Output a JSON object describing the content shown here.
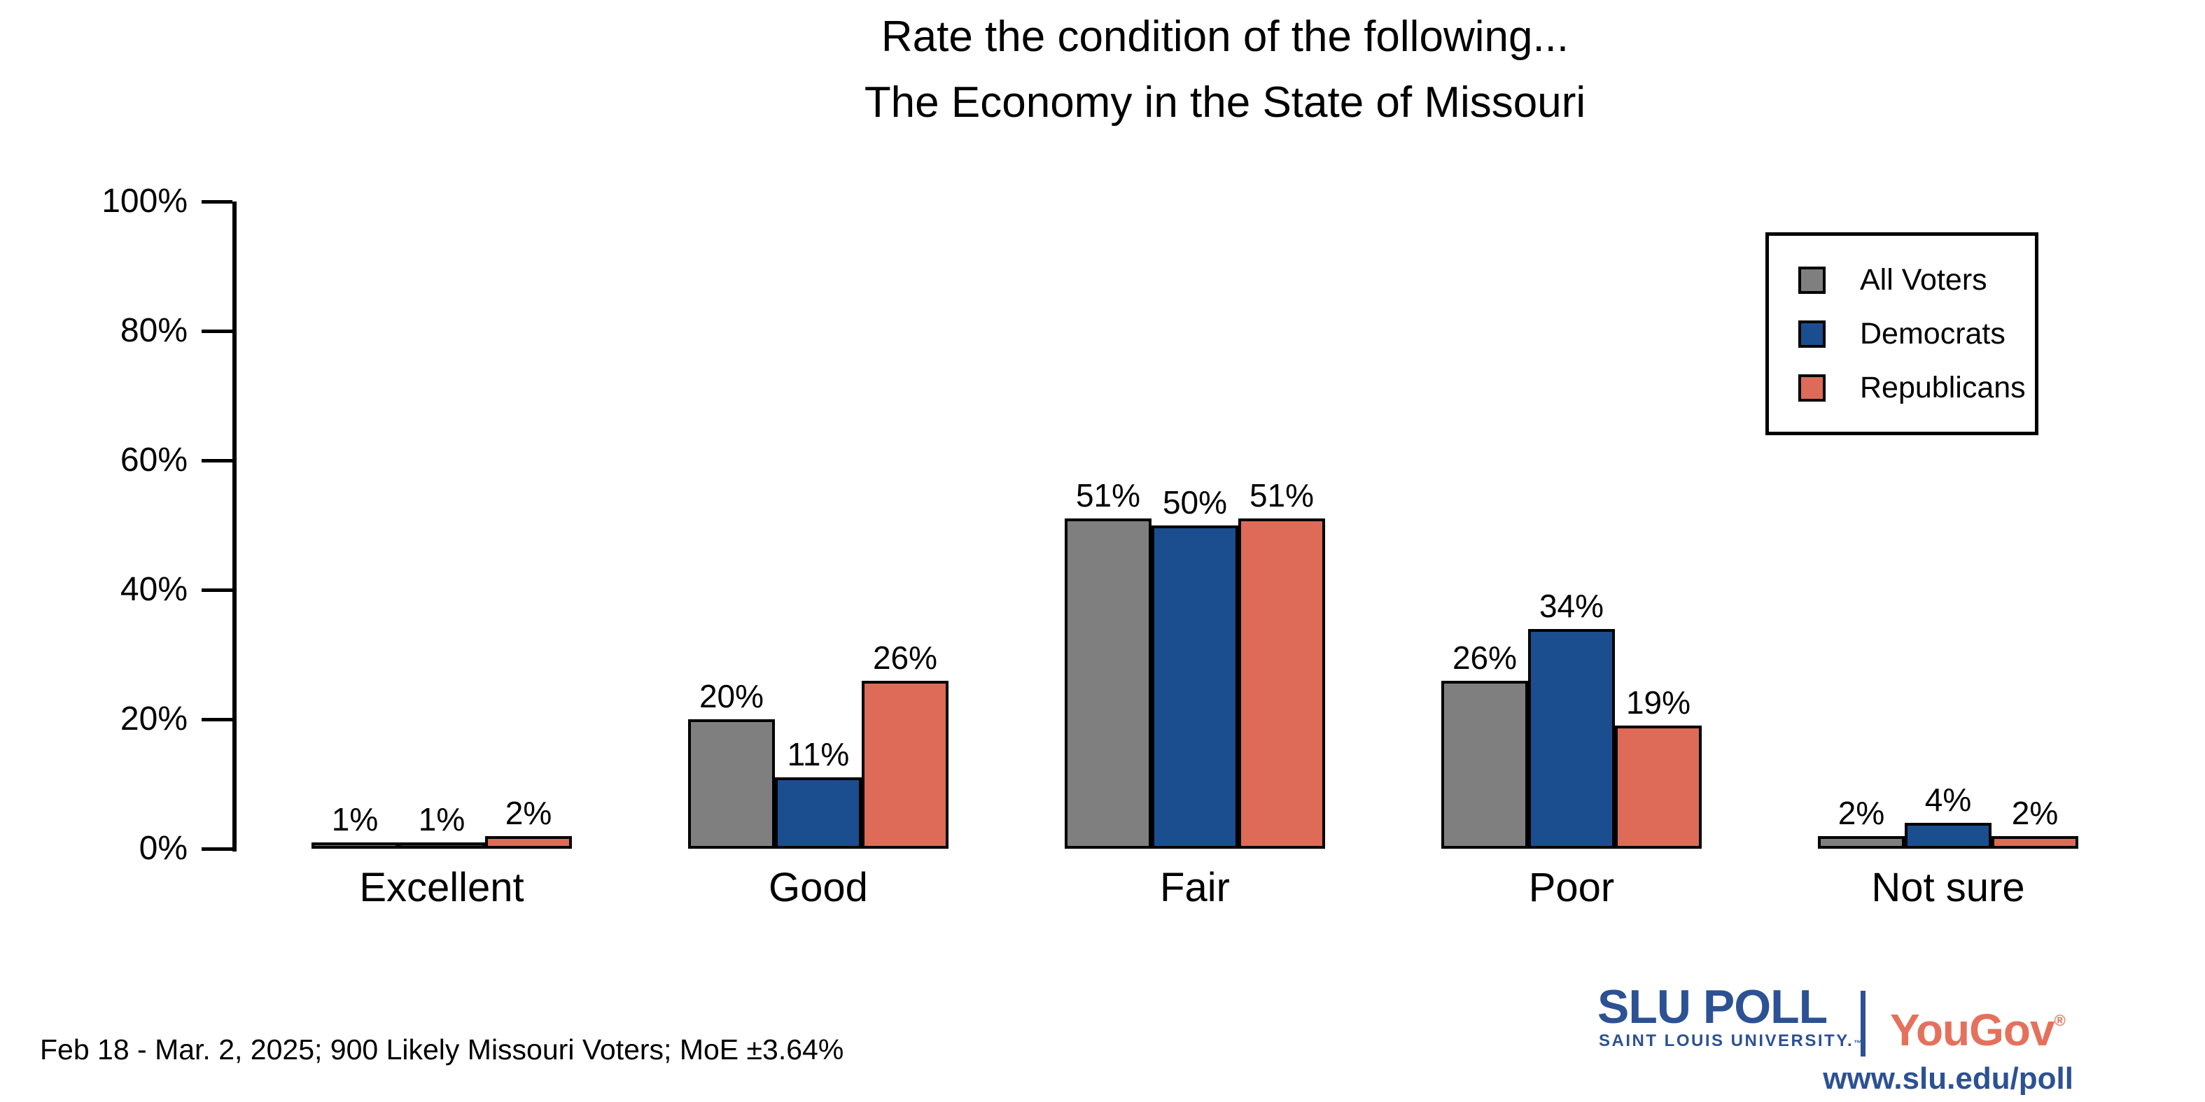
{
  "title": {
    "line1": "Rate the condition of the following...",
    "line2": "The Economy in the State of Missouri"
  },
  "footer": {
    "source_note": "Feb 18 - Mar. 2, 2025; 900 Likely Missouri Voters; MoE ±3.64%"
  },
  "branding": {
    "slu_poll": "SLU POLL",
    "slu_subtitle": "SAINT LOUIS UNIVERSITY.",
    "slu_trademark": "™",
    "yougov": "YouGov",
    "yougov_registered": "®",
    "url": "www.slu.edu/poll",
    "slu_blue": "#2C5194",
    "yougov_coral": "#E5715C"
  },
  "chart_data": {
    "type": "bar",
    "title": "Rate the condition of the following... The Economy in the State of Missouri",
    "categories": [
      "Excellent",
      "Good",
      "Fair",
      "Poor",
      "Not sure"
    ],
    "series": [
      {
        "name": "All Voters",
        "color": "#7F7F7F",
        "values": [
          1,
          20,
          51,
          26,
          2
        ]
      },
      {
        "name": "Democrats",
        "color": "#1B4E8E",
        "values": [
          1,
          11,
          50,
          34,
          4
        ]
      },
      {
        "name": "Republicans",
        "color": "#DD6B58",
        "values": [
          2,
          26,
          51,
          19,
          2
        ]
      }
    ],
    "value_label_suffix": "%",
    "xlabel": "",
    "ylabel": "",
    "ylim": [
      0,
      100
    ],
    "ytick_values": [
      0,
      20,
      40,
      60,
      80,
      100
    ],
    "ytick_labels": [
      "0%",
      "20%",
      "40%",
      "60%",
      "80%",
      "100%"
    ],
    "grid": false,
    "legend_position": "upper right",
    "bar_edge_color": "#000000"
  }
}
